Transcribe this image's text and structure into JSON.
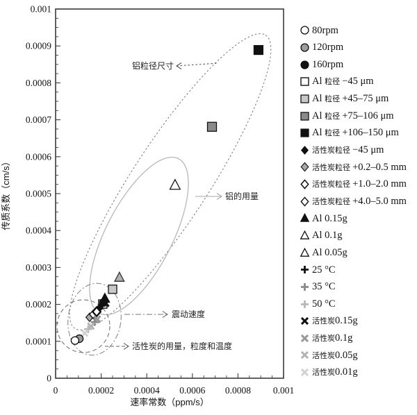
{
  "chart_data": {
    "type": "scatter",
    "title": "",
    "xlabel": "速率常数（ppm/s）",
    "ylabel": "传质系数（cm/s）",
    "xlim": [
      0,
      0.001
    ],
    "ylim": [
      0,
      0.001
    ],
    "grid": false,
    "legend_position": "right",
    "x_tick_labels": [
      "0",
      "0.0002",
      "0.0004",
      "0.0006",
      "0.0008",
      "0.001"
    ],
    "x_major_step": 0.0002,
    "x_minor_step": 5e-05,
    "y_tick_labels": [
      "0",
      "0.0001",
      "0.0002",
      "0.0003",
      "0.0004",
      "0.0005",
      "0.0006",
      "0.0007",
      "0.0008",
      "0.0009",
      "0.001"
    ],
    "y_major_step": 0.0001,
    "y_minor_step": 2.5e-05,
    "series": [
      {
        "name": "Al 粒径 −45 μm",
        "marker": {
          "shape": "square",
          "fill": "#ffffff",
          "stroke": "#111111",
          "sw": 1.4,
          "size": 12
        },
        "points": [
          {
            "x": 0.000207,
            "y": 0.000201
          }
        ]
      },
      {
        "name": "160rpm",
        "marker": {
          "shape": "circle",
          "fill": "#111111",
          "stroke": "#111111",
          "sw": 1.2,
          "size": 11
        },
        "points": [
          {
            "x": 0.00021,
            "y": 0.000205
          }
        ]
      },
      {
        "name": "Al 0.15g",
        "marker": {
          "shape": "triangle",
          "fill": "#111111",
          "stroke": "#111111",
          "sw": 1.2,
          "size": 13
        },
        "points": [
          {
            "x": 0.000216,
            "y": 0.000216
          }
        ]
      },
      {
        "name": "25 °C",
        "marker": {
          "shape": "plus",
          "fill": "none",
          "stroke": "#111111",
          "sw": 2.8,
          "size": 11
        },
        "points": [
          {
            "x": 0.000204,
            "y": 0.000197
          }
        ]
      },
      {
        "name": "活性炭0.15g",
        "marker": {
          "shape": "x",
          "fill": "none",
          "stroke": "#111111",
          "sw": 3.0,
          "size": 11
        },
        "points": [
          {
            "x": 0.00022,
            "y": 0.000203
          }
        ]
      },
      {
        "name": "活性炭粒径 −45 μm",
        "marker": {
          "shape": "diamond",
          "fill": "#111111",
          "stroke": "#111111",
          "sw": 1.2,
          "size": 10
        },
        "points": [
          {
            "x": 0.000192,
            "y": 0.00019
          }
        ]
      },
      {
        "name": "活性炭粒径 +0.2–0.5 mm",
        "marker": {
          "shape": "diamond",
          "fill": "#a8a8a8",
          "stroke": "#222222",
          "sw": 1.3,
          "size": 11
        },
        "points": [
          {
            "x": 0.000149,
            "y": 0.000165
          }
        ]
      },
      {
        "name": "活性炭粒径 +4.0–5.0 mm",
        "marker": {
          "shape": "diamond",
          "fill": "#ffffff",
          "stroke": "#111111",
          "sw": 1.4,
          "size": 11
        },
        "points": [
          {
            "x": 0.000165,
            "y": 0.000173
          }
        ]
      },
      {
        "name": "活性炭粒径 +1.0–2.0 mm",
        "marker": {
          "shape": "diamond",
          "fill": "#ffffff",
          "stroke": "#111111",
          "sw": 2.4,
          "size": 12
        },
        "points": [
          {
            "x": 0.00018,
            "y": 0.00018
          }
        ]
      },
      {
        "name": "活性炭0.1g",
        "marker": {
          "shape": "x",
          "fill": "none",
          "stroke": "#999999",
          "sw": 3.0,
          "size": 11
        },
        "points": [
          {
            "x": 0.000183,
            "y": 0.00016
          }
        ]
      },
      {
        "name": "35 °C",
        "marker": {
          "shape": "plus",
          "fill": "none",
          "stroke": "#8a8a8a",
          "sw": 2.8,
          "size": 11
        },
        "points": [
          {
            "x": 0.000171,
            "y": 0.000152
          }
        ]
      },
      {
        "name": "活性炭0.05g",
        "marker": {
          "shape": "x",
          "fill": "none",
          "stroke": "#b3b3b3",
          "sw": 3.0,
          "size": 11
        },
        "points": [
          {
            "x": 0.000155,
            "y": 0.000141
          }
        ]
      },
      {
        "name": "50 °C",
        "marker": {
          "shape": "plus",
          "fill": "none",
          "stroke": "#b8b8b8",
          "sw": 2.8,
          "size": 11
        },
        "points": [
          {
            "x": 0.000143,
            "y": 0.000133
          }
        ]
      },
      {
        "name": "活性炭0.01g",
        "marker": {
          "shape": "x",
          "fill": "none",
          "stroke": "#d2d2d2",
          "sw": 3.0,
          "size": 11
        },
        "points": [
          {
            "x": 0.000128,
            "y": 0.000122
          }
        ]
      },
      {
        "name": "120rpm",
        "marker": {
          "shape": "circle",
          "fill": "#9c9c9c",
          "stroke": "#111111",
          "sw": 1.3,
          "size": 11
        },
        "points": [
          {
            "x": 0.000104,
            "y": 0.000107
          }
        ]
      },
      {
        "name": "80rpm",
        "marker": {
          "shape": "circle",
          "fill": "#ffffff",
          "stroke": "#111111",
          "sw": 1.3,
          "size": 11
        },
        "points": [
          {
            "x": 8.5e-05,
            "y": 0.000102
          }
        ]
      },
      {
        "name": "Al 粒径 +45–75 μm",
        "marker": {
          "shape": "square",
          "fill": "#c8c8c8",
          "stroke": "#111111",
          "sw": 1.3,
          "size": 12
        },
        "points": [
          {
            "x": 0.00025,
            "y": 0.000241
          }
        ]
      },
      {
        "name": "Al 0.05g",
        "marker": {
          "shape": "triangle",
          "fill": "#b0b0b0",
          "stroke": "#333333",
          "sw": 1.3,
          "size": 13
        },
        "points": [
          {
            "x": 0.00028,
            "y": 0.000273
          }
        ]
      },
      {
        "name": "Al 0.1g",
        "marker": {
          "shape": "triangle",
          "fill": "#ffffff",
          "stroke": "#111111",
          "sw": 1.3,
          "size": 14
        },
        "points": [
          {
            "x": 0.000524,
            "y": 0.000523
          }
        ]
      },
      {
        "name": "Al 粒径 +75–106 μm",
        "marker": {
          "shape": "square",
          "fill": "#8a8a8a",
          "stroke": "#111111",
          "sw": 1.3,
          "size": 13
        },
        "points": [
          {
            "x": 0.000686,
            "y": 0.000681
          }
        ]
      },
      {
        "name": "Al 粒径 +106–150 μm",
        "marker": {
          "shape": "square",
          "fill": "#111111",
          "stroke": "#111111",
          "sw": 1.2,
          "size": 13
        },
        "points": [
          {
            "x": 0.00089,
            "y": 0.000889
          }
        ]
      }
    ],
    "groups": [
      {
        "label": "铝粒径尺寸",
        "cx": 245,
        "cy": 262,
        "rx": 252,
        "ry": 55,
        "rotate": -57,
        "stroke": "#808080",
        "dash": "2.5 3",
        "sw": 1.1
      },
      {
        "label": "铝的用量",
        "cx": 200,
        "cy": 340,
        "rx": 125,
        "ry": 48,
        "rotate": -63,
        "stroke": "#b8b8b8",
        "dash": "none",
        "sw": 1.3
      },
      {
        "label": "震动速度",
        "cx": 136,
        "cy": 460,
        "rx": 38,
        "ry": 52,
        "rotate": 8,
        "stroke": "#8a8a8a",
        "dash": "8 3 2 3",
        "sw": 1.1
      },
      {
        "label": "活性炭的用量，粒度和温度",
        "cx": 120,
        "cy": 470,
        "rx": 38,
        "ry": 38,
        "rotate": 0,
        "stroke": "#777777",
        "dash": "6 4",
        "sw": 1.1
      }
    ],
    "annotations": [
      {
        "text": "铝粒径尺寸",
        "tx": 250,
        "ty": 99,
        "anchor": "end",
        "line": [
          254,
          95,
          314,
          91
        ],
        "dash": "2.5 3",
        "arrow": "start",
        "color": "#555555"
      },
      {
        "text": "铝的用量",
        "tx": 324,
        "ty": 287,
        "anchor": "start",
        "line": [
          281,
          283,
          319,
          283
        ],
        "dash": "none",
        "arrow": "end",
        "color": "#aaaaaa"
      },
      {
        "text": "震动速度",
        "tx": 247,
        "ty": 457,
        "anchor": "start",
        "line": [
          179,
          453,
          241,
          453
        ],
        "dash": "8 3 2 3",
        "arrow": "end",
        "color": "#777777"
      },
      {
        "text": "活性炭的用量，粒度和温度",
        "tx": 190,
        "ty": 503,
        "anchor": "start",
        "line": [
          151,
          499,
          185,
          499
        ],
        "dash": "5 3",
        "arrow": "end",
        "color": "#666666"
      }
    ]
  },
  "legend": {
    "items": [
      {
        "series": "80rpm",
        "segments": [
          {
            "t": "80rpm"
          }
        ]
      },
      {
        "series": "120rpm",
        "segments": [
          {
            "t": "120rpm"
          }
        ]
      },
      {
        "series": "160rpm",
        "segments": [
          {
            "t": "160rpm"
          }
        ]
      },
      {
        "series": "Al 粒径 −45 μm",
        "segments": [
          {
            "t": "Al "
          },
          {
            "t": "粒径 ",
            "small": true
          },
          {
            "t": "−45 μm"
          }
        ]
      },
      {
        "series": "Al 粒径 +45–75 μm",
        "segments": [
          {
            "t": "Al "
          },
          {
            "t": "粒径 ",
            "small": true
          },
          {
            "t": "+45–75 μm"
          }
        ]
      },
      {
        "series": "Al 粒径 +75–106 μm",
        "segments": [
          {
            "t": "Al "
          },
          {
            "t": "粒径 ",
            "small": true
          },
          {
            "t": "+75–106 μm"
          }
        ]
      },
      {
        "series": "Al 粒径 +106–150 μm",
        "segments": [
          {
            "t": "Al "
          },
          {
            "t": "粒径 ",
            "small": true
          },
          {
            "t": "+106–150 μm"
          }
        ]
      },
      {
        "series": "活性炭粒径 −45 μm",
        "segments": [
          {
            "t": "活性炭粒径 ",
            "small": true
          },
          {
            "t": "−45 μm"
          }
        ]
      },
      {
        "series": "活性炭粒径 +0.2–0.5 mm",
        "segments": [
          {
            "t": "活性炭粒径 ",
            "small": true
          },
          {
            "t": "+0.2–0.5 mm"
          }
        ]
      },
      {
        "series": "活性炭粒径 +1.0–2.0 mm",
        "segments": [
          {
            "t": "活性炭粒径 ",
            "small": true
          },
          {
            "t": "+1.0–2.0 mm"
          }
        ],
        "icon_override": {
          "sw": 1.5
        }
      },
      {
        "series": "活性炭粒径 +4.0–5.0 mm",
        "segments": [
          {
            "t": "活性炭粒径 ",
            "small": true
          },
          {
            "t": "+4.0–5.0 mm"
          }
        ]
      },
      {
        "series": "Al 0.15g",
        "segments": [
          {
            "t": "Al 0.15g"
          }
        ]
      },
      {
        "series": "Al 0.1g",
        "segments": [
          {
            "t": "Al 0.1g"
          }
        ]
      },
      {
        "series": "Al 0.05g",
        "segments": [
          {
            "t": "Al 0.05g"
          }
        ],
        "icon_override": {
          "fill": "#ffffff",
          "stroke": "#111111",
          "sw": 1.3
        }
      },
      {
        "series": "25 °C",
        "segments": [
          {
            "t": "25 °C"
          }
        ]
      },
      {
        "series": "35 °C",
        "segments": [
          {
            "t": "35 °C"
          }
        ]
      },
      {
        "series": "50 °C",
        "segments": [
          {
            "t": "50 °C"
          }
        ]
      },
      {
        "series": "活性炭0.15g",
        "segments": [
          {
            "t": "活性炭",
            "small": true
          },
          {
            "t": "0.15g"
          }
        ]
      },
      {
        "series": "活性炭0.1g",
        "segments": [
          {
            "t": "活性炭",
            "small": true
          },
          {
            "t": "0.1g"
          }
        ]
      },
      {
        "series": "活性炭0.05g",
        "segments": [
          {
            "t": "活性炭",
            "small": true
          },
          {
            "t": "0.05g"
          }
        ]
      },
      {
        "series": "活性炭0.01g",
        "segments": [
          {
            "t": "活性炭",
            "small": true
          },
          {
            "t": "0.01g"
          }
        ]
      }
    ]
  }
}
